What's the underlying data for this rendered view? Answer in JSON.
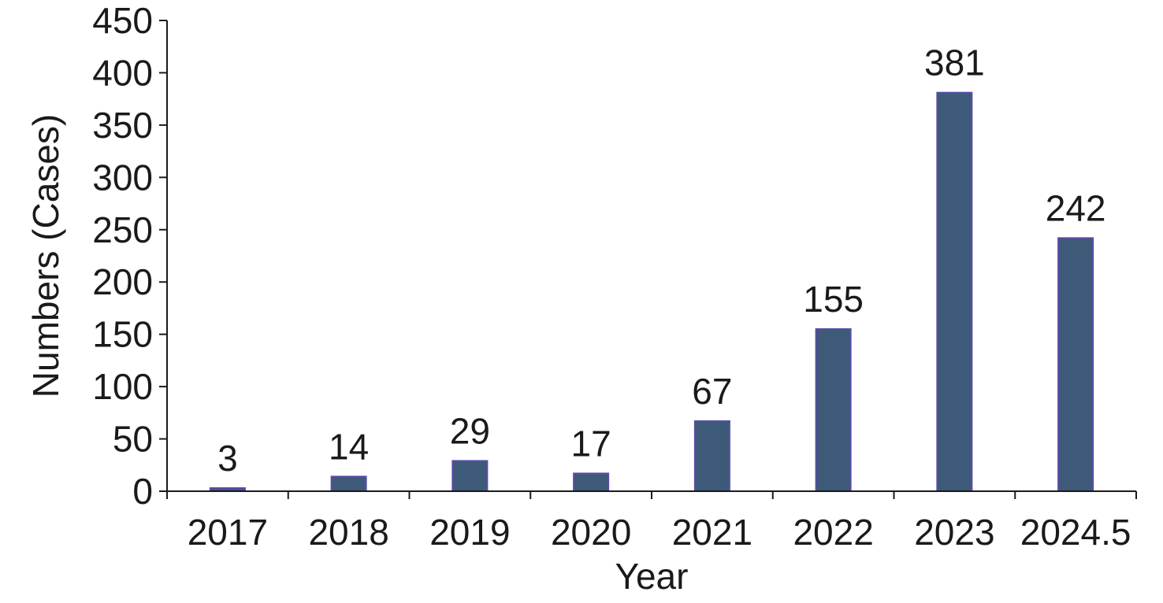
{
  "chart_data": {
    "type": "bar",
    "title": "",
    "xlabel": "Year",
    "ylabel": "Numbers (Cases)",
    "categories": [
      "2017",
      "2018",
      "2019",
      "2020",
      "2021",
      "2022",
      "2023",
      "2024.5"
    ],
    "values": [
      3,
      14,
      29,
      17,
      67,
      155,
      381,
      242
    ],
    "data_labels": [
      "3",
      "14",
      "29",
      "17",
      "67",
      "155",
      "381",
      "242"
    ],
    "ylim": [
      0,
      450
    ],
    "yticks": [
      0,
      50,
      100,
      150,
      200,
      250,
      300,
      350,
      400,
      450
    ],
    "grid": false,
    "legend": "none",
    "colors": {
      "bar": "#3d5a78",
      "bar_edge": "#5a4aa8",
      "axis": "#1a1a1a"
    }
  }
}
